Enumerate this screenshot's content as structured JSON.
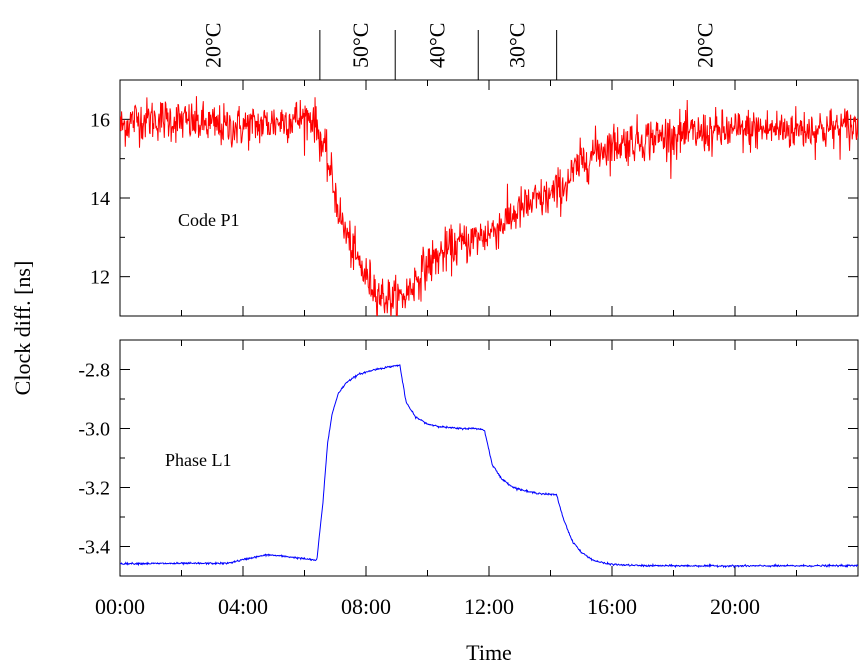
{
  "chart_data": [
    {
      "type": "line",
      "ylabel": "Clock diff.  [ns]",
      "annotation": "Code P1",
      "series": [
        {
          "color": "#ff0000",
          "noise": 0.55,
          "x": [
            0,
            0.5,
            1.5,
            2.5,
            3.5,
            4.5,
            5.5,
            6.3,
            6.8,
            7.2,
            7.6,
            8.0,
            8.5,
            9.0,
            9.3,
            9.6,
            10.0,
            10.5,
            11.0,
            11.5,
            12.0,
            12.5,
            13.0,
            13.5,
            14.0,
            14.5,
            15.0,
            15.5,
            16.0,
            17.0,
            18.0,
            19.0,
            20.0,
            21.0,
            22.0,
            23.0,
            23.9
          ],
          "y": [
            15.8,
            16.0,
            16.0,
            15.9,
            15.8,
            15.85,
            16.0,
            16.05,
            14.8,
            13.4,
            12.6,
            12.0,
            11.5,
            11.4,
            11.55,
            11.9,
            12.3,
            12.6,
            12.8,
            12.95,
            13.1,
            13.4,
            13.7,
            13.9,
            14.05,
            14.35,
            14.9,
            15.2,
            15.35,
            15.5,
            15.6,
            15.65,
            15.7,
            15.75,
            15.75,
            15.75,
            15.8
          ]
        }
      ],
      "ylim": [
        11,
        17
      ],
      "yticks": [
        12,
        14,
        16
      ],
      "ytick_labels": [
        "12",
        "14",
        "16"
      ],
      "xlim": [
        0,
        24
      ]
    },
    {
      "type": "line",
      "xlabel": "Time",
      "annotation": "Phase L1",
      "series": [
        {
          "color": "#0000ff",
          "noise": 0.003,
          "x": [
            0,
            3.5,
            4.2,
            4.8,
            5.5,
            6.4,
            6.6,
            6.75,
            6.9,
            7.1,
            7.4,
            7.8,
            8.3,
            8.8,
            9.1,
            9.3,
            9.6,
            10.0,
            10.5,
            11.0,
            11.6,
            11.85,
            12.1,
            12.4,
            12.8,
            13.3,
            13.8,
            14.2,
            14.4,
            14.7,
            15.0,
            15.4,
            15.8,
            16.2,
            17.0,
            20.0,
            23.9
          ],
          "y": [
            -3.458,
            -3.457,
            -3.44,
            -3.428,
            -3.435,
            -3.447,
            -3.25,
            -3.05,
            -2.95,
            -2.88,
            -2.84,
            -2.815,
            -2.8,
            -2.79,
            -2.785,
            -2.91,
            -2.96,
            -2.985,
            -2.995,
            -3.0,
            -3.0,
            -3.005,
            -3.12,
            -3.17,
            -3.2,
            -3.215,
            -3.222,
            -3.225,
            -3.3,
            -3.38,
            -3.42,
            -3.447,
            -3.458,
            -3.462,
            -3.465,
            -3.466,
            -3.465
          ]
        }
      ],
      "ylim": [
        -3.5,
        -2.7
      ],
      "yticks": [
        -3.4,
        -3.2,
        -3.0,
        -2.8
      ],
      "ytick_labels": [
        "-3.4",
        "-3.2",
        "-3.0",
        "-2.8"
      ],
      "xlim": [
        0,
        24
      ],
      "xticks": [
        0,
        4,
        8,
        12,
        16,
        20
      ],
      "xtick_labels": [
        "00:00",
        "04:00",
        "08:00",
        "12:00",
        "16:00",
        "20:00"
      ]
    }
  ],
  "temperature_zones": {
    "boundaries": [
      6.5,
      8.95,
      11.65,
      14.2
    ],
    "labels": [
      {
        "text": "20°C",
        "x": 3.0
      },
      {
        "text": "50°C",
        "x": 7.8
      },
      {
        "text": "40°C",
        "x": 10.3
      },
      {
        "text": "30°C",
        "x": 12.9
      },
      {
        "text": "20°C",
        "x": 19.0
      }
    ]
  }
}
